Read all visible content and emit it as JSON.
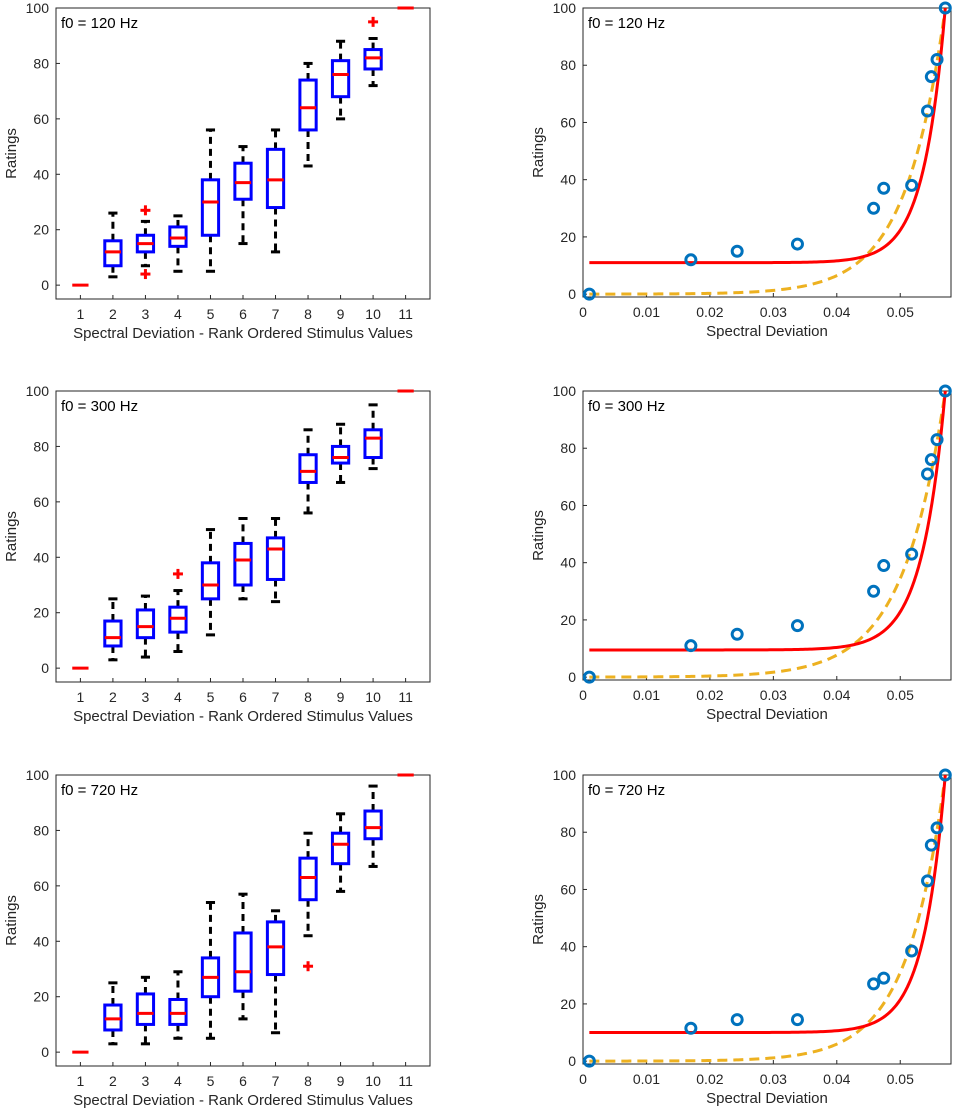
{
  "colors": {
    "box": "#0000ff",
    "median": "#ff0000",
    "whisker": "#000000",
    "outlier": "#ff0000",
    "points": "#0072bd",
    "fit_solid": "#ff0000",
    "fit_dashed": "#edb120",
    "axis": "#262626"
  },
  "chart_data": [
    {
      "type": "box",
      "panel": "top-left",
      "title": "f0 = 120 Hz",
      "xlabel": "Spectral Deviation - Rank Ordered Stimulus Values",
      "ylabel": "Ratings",
      "categories": [
        "1",
        "2",
        "3",
        "4",
        "5",
        "6",
        "7",
        "8",
        "9",
        "10",
        "11"
      ],
      "ylim": [
        -5,
        100
      ],
      "yticks": [
        0,
        20,
        40,
        60,
        80,
        100
      ],
      "boxes": [
        {
          "q1": 0,
          "median": 0,
          "q3": 0,
          "lo": 0,
          "hi": 0,
          "outliers": []
        },
        {
          "q1": 7,
          "median": 12,
          "q3": 16,
          "lo": 3,
          "hi": 26,
          "outliers": []
        },
        {
          "q1": 12,
          "median": 15,
          "q3": 18,
          "lo": 7,
          "hi": 23,
          "outliers": [
            4,
            27
          ]
        },
        {
          "q1": 14,
          "median": 17,
          "q3": 21,
          "lo": 5,
          "hi": 25,
          "outliers": []
        },
        {
          "q1": 18,
          "median": 30,
          "q3": 38,
          "lo": 5,
          "hi": 56,
          "outliers": []
        },
        {
          "q1": 31,
          "median": 37,
          "q3": 44,
          "lo": 15,
          "hi": 50,
          "outliers": []
        },
        {
          "q1": 28,
          "median": 38,
          "q3": 49,
          "lo": 12,
          "hi": 56,
          "outliers": []
        },
        {
          "q1": 56,
          "median": 64,
          "q3": 74,
          "lo": 43,
          "hi": 80,
          "outliers": []
        },
        {
          "q1": 68,
          "median": 76,
          "q3": 81,
          "lo": 60,
          "hi": 88,
          "outliers": []
        },
        {
          "q1": 78,
          "median": 82,
          "q3": 85,
          "lo": 72,
          "hi": 89,
          "outliers": [
            95
          ]
        },
        {
          "q1": 100,
          "median": 100,
          "q3": 100,
          "lo": 100,
          "hi": 100,
          "outliers": []
        }
      ]
    },
    {
      "type": "scatter",
      "panel": "top-right",
      "title": "f0 = 120 Hz",
      "xlabel": "Spectral Deviation",
      "ylabel": "Ratings",
      "xlim": [
        0,
        0.058
      ],
      "ylim": [
        -1,
        100
      ],
      "xticks": [
        0,
        0.01,
        0.02,
        0.03,
        0.04,
        0.05
      ],
      "xtick_labels": [
        "0",
        "0.01",
        "0.02",
        "0.03",
        "0.04",
        "0.05"
      ],
      "yticks": [
        0,
        20,
        40,
        60,
        80,
        100
      ],
      "points": {
        "x": [
          0.001,
          0.017,
          0.0243,
          0.0338,
          0.0458,
          0.0474,
          0.0518,
          0.0543,
          0.0549,
          0.0558,
          0.0571
        ],
        "y": [
          0,
          12,
          15,
          17.5,
          30,
          37,
          38,
          64,
          76,
          82,
          100
        ]
      },
      "fit_solid": {
        "base": 11,
        "amp": 89,
        "rate": 290
      },
      "fit_dashed": {
        "base": 0,
        "amp": 100,
        "rate": 160
      }
    },
    {
      "type": "box",
      "panel": "middle-left",
      "title": "f0 = 300 Hz",
      "xlabel": "Spectral Deviation - Rank Ordered Stimulus Values",
      "ylabel": "Ratings",
      "categories": [
        "1",
        "2",
        "3",
        "4",
        "5",
        "6",
        "7",
        "8",
        "9",
        "10",
        "11"
      ],
      "ylim": [
        -5,
        100
      ],
      "yticks": [
        0,
        20,
        40,
        60,
        80,
        100
      ],
      "boxes": [
        {
          "q1": 0,
          "median": 0,
          "q3": 0,
          "lo": 0,
          "hi": 0,
          "outliers": []
        },
        {
          "q1": 8,
          "median": 11,
          "q3": 17,
          "lo": 3,
          "hi": 25,
          "outliers": []
        },
        {
          "q1": 11,
          "median": 15,
          "q3": 21,
          "lo": 4,
          "hi": 26,
          "outliers": []
        },
        {
          "q1": 13,
          "median": 18,
          "q3": 22,
          "lo": 6,
          "hi": 28,
          "outliers": [
            34
          ]
        },
        {
          "q1": 25,
          "median": 30,
          "q3": 38,
          "lo": 12,
          "hi": 50,
          "outliers": []
        },
        {
          "q1": 30,
          "median": 39,
          "q3": 45,
          "lo": 25,
          "hi": 54,
          "outliers": []
        },
        {
          "q1": 32,
          "median": 43,
          "q3": 47,
          "lo": 24,
          "hi": 54,
          "outliers": []
        },
        {
          "q1": 67,
          "median": 71,
          "q3": 77,
          "lo": 56,
          "hi": 86,
          "outliers": []
        },
        {
          "q1": 74,
          "median": 76,
          "q3": 80,
          "lo": 67,
          "hi": 88,
          "outliers": []
        },
        {
          "q1": 76,
          "median": 83,
          "q3": 86,
          "lo": 72,
          "hi": 95,
          "outliers": []
        },
        {
          "q1": 100,
          "median": 100,
          "q3": 100,
          "lo": 100,
          "hi": 100,
          "outliers": []
        }
      ]
    },
    {
      "type": "scatter",
      "panel": "middle-right",
      "title": "f0 = 300 Hz",
      "xlabel": "Spectral Deviation",
      "ylabel": "Ratings",
      "xlim": [
        0,
        0.058
      ],
      "ylim": [
        -1,
        100
      ],
      "xticks": [
        0,
        0.01,
        0.02,
        0.03,
        0.04,
        0.05
      ],
      "xtick_labels": [
        "0",
        "0.01",
        "0.02",
        "0.03",
        "0.04",
        "0.05"
      ],
      "yticks": [
        0,
        20,
        40,
        60,
        80,
        100
      ],
      "points": {
        "x": [
          0.001,
          0.017,
          0.0243,
          0.0338,
          0.0458,
          0.0474,
          0.0518,
          0.0543,
          0.0549,
          0.0558,
          0.0571
        ],
        "y": [
          0,
          11,
          15,
          18,
          30,
          39,
          43,
          71,
          76,
          83,
          100
        ]
      },
      "fit_solid": {
        "base": 9.5,
        "amp": 90.5,
        "rate": 270
      },
      "fit_dashed": {
        "base": 0,
        "amp": 100,
        "rate": 150
      }
    },
    {
      "type": "box",
      "panel": "bottom-left",
      "title": "f0 = 720 Hz",
      "xlabel": "Spectral Deviation - Rank Ordered Stimulus Values",
      "ylabel": "Ratings",
      "categories": [
        "1",
        "2",
        "3",
        "4",
        "5",
        "6",
        "7",
        "8",
        "9",
        "10",
        "11"
      ],
      "ylim": [
        -5,
        100
      ],
      "yticks": [
        0,
        20,
        40,
        60,
        80,
        100
      ],
      "boxes": [
        {
          "q1": 0,
          "median": 0,
          "q3": 0,
          "lo": 0,
          "hi": 0,
          "outliers": []
        },
        {
          "q1": 8,
          "median": 12,
          "q3": 17,
          "lo": 3,
          "hi": 25,
          "outliers": []
        },
        {
          "q1": 10,
          "median": 14,
          "q3": 21,
          "lo": 3,
          "hi": 27,
          "outliers": []
        },
        {
          "q1": 10,
          "median": 14,
          "q3": 19,
          "lo": 5,
          "hi": 29,
          "outliers": []
        },
        {
          "q1": 20,
          "median": 27,
          "q3": 34,
          "lo": 5,
          "hi": 54,
          "outliers": []
        },
        {
          "q1": 22,
          "median": 29,
          "q3": 43,
          "lo": 12,
          "hi": 57,
          "outliers": []
        },
        {
          "q1": 28,
          "median": 38,
          "q3": 47,
          "lo": 7,
          "hi": 51,
          "outliers": []
        },
        {
          "q1": 55,
          "median": 63,
          "q3": 70,
          "lo": 42,
          "hi": 79,
          "outliers": [
            31
          ]
        },
        {
          "q1": 68,
          "median": 75,
          "q3": 79,
          "lo": 58,
          "hi": 86,
          "outliers": []
        },
        {
          "q1": 77,
          "median": 81,
          "q3": 87,
          "lo": 67,
          "hi": 96,
          "outliers": []
        },
        {
          "q1": 100,
          "median": 100,
          "q3": 100,
          "lo": 100,
          "hi": 100,
          "outliers": []
        }
      ]
    },
    {
      "type": "scatter",
      "panel": "bottom-right",
      "title": "f0 = 720 Hz",
      "xlabel": "Spectral Deviation",
      "ylabel": "Ratings",
      "xlim": [
        0,
        0.058
      ],
      "ylim": [
        -1,
        100
      ],
      "xticks": [
        0,
        0.01,
        0.02,
        0.03,
        0.04,
        0.05
      ],
      "xtick_labels": [
        "0",
        "0.01",
        "0.02",
        "0.03",
        "0.04",
        "0.05"
      ],
      "yticks": [
        0,
        20,
        40,
        60,
        80,
        100
      ],
      "points": {
        "x": [
          0.001,
          0.017,
          0.0243,
          0.0338,
          0.0458,
          0.0474,
          0.0518,
          0.0543,
          0.0549,
          0.0558,
          0.0571
        ],
        "y": [
          0,
          11.5,
          14.5,
          14.5,
          27,
          29,
          38.5,
          63,
          75.5,
          81.5,
          100
        ]
      },
      "fit_solid": {
        "base": 10,
        "amp": 90,
        "rate": 290
      },
      "fit_dashed": {
        "base": 0,
        "amp": 100,
        "rate": 165
      }
    }
  ]
}
